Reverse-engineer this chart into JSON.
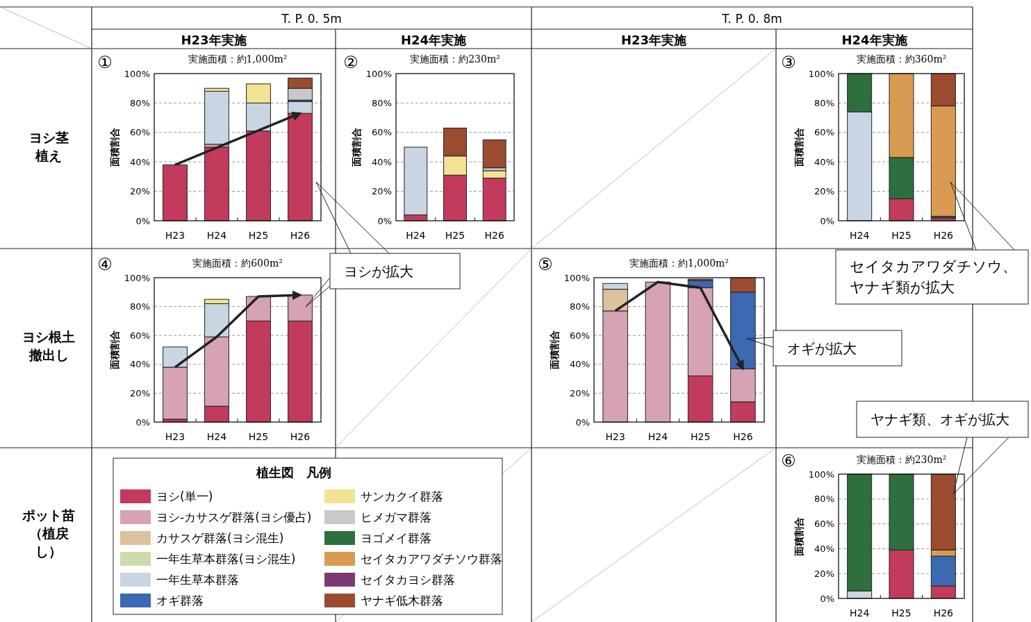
{
  "chart_data": [
    {
      "type": "bar",
      "stacked": true,
      "title": "実施面積：約1,000m²",
      "ylabel": "面積割合",
      "annotations": [
        "①",
        "ヨシが拡大"
      ],
      "categories": [
        "H23",
        "H24",
        "H25",
        "H26"
      ],
      "ylim": [
        0,
        100
      ],
      "yticks": [
        {
          "value": 0,
          "label": "0%"
        },
        {
          "value": 20,
          "label": "20%"
        },
        {
          "value": 40,
          "label": "40%"
        },
        {
          "value": 60,
          "label": "60%"
        },
        {
          "value": 80,
          "label": "80%"
        },
        {
          "value": 100,
          "label": "100%"
        }
      ],
      "grid": "y",
      "legend": "bottom",
      "legend_title": "植生図　凡例",
      "series": [
        {
          "name": "ヨシ(単一)",
          "color": "#c23b5c",
          "values": [
            38,
            50,
            61,
            73
          ]
        },
        {
          "name": "ヨシ-カサスゲ群落(ヨシ優占)",
          "color": "#d6a3b3",
          "values": [
            0,
            2,
            0,
            0
          ]
        },
        {
          "name": "カサスゲ群落(ヨシ混生)",
          "color": "#dcc29c",
          "values": [
            0,
            0,
            0,
            0
          ]
        },
        {
          "name": "一年生草本群落(ヨシ混生)",
          "color": "#cadcaa",
          "values": [
            0,
            0,
            0,
            0
          ]
        },
        {
          "name": "一年生草本群落",
          "color": "#c9d5e2",
          "values": [
            0,
            36,
            19,
            8
          ]
        },
        {
          "name": "オギ群落",
          "color": "#3b69b2",
          "values": [
            0,
            0,
            0,
            1
          ]
        },
        {
          "name": "サンカクイ群落",
          "color": "#f2e394",
          "values": [
            0,
            2,
            13,
            0
          ]
        },
        {
          "name": "ヒメガマ群落",
          "color": "#c9c9c9",
          "values": [
            0,
            0,
            0,
            8
          ]
        },
        {
          "name": "ヨゴメイ群落",
          "color": "#2f6f3d",
          "values": [
            0,
            0,
            0,
            0
          ]
        },
        {
          "name": "セイタカアワダチソウ群落",
          "color": "#d99b52",
          "values": [
            0,
            0,
            0,
            0
          ]
        },
        {
          "name": "セイタカヨシ群落",
          "color": "#7b3b72",
          "values": [
            0,
            0,
            0,
            0
          ]
        },
        {
          "name": "ヤナギ低木群落",
          "color": "#9b4b2f",
          "values": [
            0,
            0,
            0,
            7
          ]
        }
      ]
    },
    {
      "type": "bar",
      "stacked": true,
      "title": "実施面積：約230m²",
      "ylabel": "面積割合",
      "annotations": [
        "②"
      ],
      "categories": [
        "H24",
        "H25",
        "H26"
      ],
      "ylim": [
        0,
        100
      ],
      "yticks": [
        {
          "value": 0,
          "label": "0%"
        },
        {
          "value": 20,
          "label": "20%"
        },
        {
          "value": 40,
          "label": "40%"
        },
        {
          "value": 60,
          "label": "60%"
        },
        {
          "value": 80,
          "label": "80%"
        },
        {
          "value": 100,
          "label": "100%"
        }
      ],
      "grid": "y",
      "series": [
        {
          "color": "#c23b5c",
          "values": [
            4,
            31,
            29
          ]
        },
        {
          "color": "#c9d5e2",
          "values": [
            46,
            0,
            0
          ]
        },
        {
          "color": "#f2e394",
          "values": [
            0,
            13,
            5
          ]
        },
        {
          "color": "#c9c9c9",
          "values": [
            0,
            0,
            2
          ]
        },
        {
          "color": "#9b4b2f",
          "values": [
            0,
            19,
            19
          ]
        }
      ]
    },
    {
      "type": "bar",
      "stacked": true,
      "title": "実施面積：約360m²",
      "ylabel": "面積割合",
      "annotations": [
        "③",
        "セイタカアワダチソウ、ヤナギ類が拡大"
      ],
      "categories": [
        "H24",
        "H25",
        "H26"
      ],
      "ylim": [
        0,
        100
      ],
      "yticks": [
        {
          "value": 0,
          "label": "0%"
        },
        {
          "value": 20,
          "label": "20%"
        },
        {
          "value": 40,
          "label": "40%"
        },
        {
          "value": 60,
          "label": "60%"
        },
        {
          "value": 80,
          "label": "80%"
        },
        {
          "value": 100,
          "label": "100%"
        }
      ],
      "grid": "y",
      "series": [
        {
          "color": "#c23b5c",
          "values": [
            0,
            15,
            2
          ]
        },
        {
          "color": "#c9d5e2",
          "values": [
            74,
            0,
            0
          ]
        },
        {
          "color": "#2f6f3d",
          "values": [
            26,
            28,
            1
          ]
        },
        {
          "color": "#d99b52",
          "values": [
            0,
            57,
            75
          ]
        },
        {
          "color": "#9b4b2f",
          "values": [
            0,
            0,
            22
          ]
        }
      ]
    },
    {
      "type": "bar",
      "stacked": true,
      "title": "実施面積：約600m²",
      "ylabel": "面積割合",
      "annotations": [
        "④"
      ],
      "categories": [
        "H23",
        "H24",
        "H25",
        "H26"
      ],
      "ylim": [
        0,
        100
      ],
      "yticks": [
        {
          "value": 0,
          "label": "0%"
        },
        {
          "value": 20,
          "label": "20%"
        },
        {
          "value": 40,
          "label": "40%"
        },
        {
          "value": 60,
          "label": "60%"
        },
        {
          "value": 80,
          "label": "80%"
        },
        {
          "value": 100,
          "label": "100%"
        }
      ],
      "grid": "y",
      "series": [
        {
          "color": "#c23b5c",
          "values": [
            2,
            11,
            70,
            70
          ]
        },
        {
          "color": "#d6a3b3",
          "values": [
            36,
            48,
            17,
            18
          ]
        },
        {
          "color": "#c9d5e2",
          "values": [
            14,
            23,
            0,
            0
          ]
        },
        {
          "color": "#f2e394",
          "values": [
            0,
            3,
            0,
            0
          ]
        }
      ]
    },
    {
      "type": "bar",
      "stacked": true,
      "title": "実施面積：約1,000m²",
      "ylabel": "面積割合",
      "annotations": [
        "⑤",
        "オギが拡大"
      ],
      "categories": [
        "H23",
        "H24",
        "H25",
        "H26"
      ],
      "ylim": [
        0,
        100
      ],
      "yticks": [
        {
          "value": 0,
          "label": "0%"
        },
        {
          "value": 20,
          "label": "20%"
        },
        {
          "value": 40,
          "label": "40%"
        },
        {
          "value": 60,
          "label": "60%"
        },
        {
          "value": 80,
          "label": "80%"
        },
        {
          "value": 100,
          "label": "100%"
        }
      ],
      "grid": "y",
      "series": [
        {
          "color": "#c23b5c",
          "values": [
            0,
            0,
            32,
            14
          ]
        },
        {
          "color": "#d6a3b3",
          "values": [
            77,
            97,
            61,
            23
          ]
        },
        {
          "color": "#dcc29c",
          "values": [
            15,
            0,
            0,
            0
          ]
        },
        {
          "color": "#c9d5e2",
          "values": [
            4,
            0,
            0,
            0
          ]
        },
        {
          "color": "#3b69b2",
          "values": [
            0,
            0,
            5,
            53
          ]
        },
        {
          "color": "#9b4b2f",
          "values": [
            0,
            0,
            1,
            10
          ]
        }
      ]
    },
    {
      "type": "bar",
      "stacked": true,
      "title": "実施面積：約230m²",
      "ylabel": "面積割合",
      "annotations": [
        "⑥",
        "ヤナギ類、オギが拡大"
      ],
      "categories": [
        "H24",
        "H25",
        "H26"
      ],
      "ylim": [
        0,
        100
      ],
      "yticks": [
        {
          "value": 0,
          "label": "0%"
        },
        {
          "value": 20,
          "label": "20%"
        },
        {
          "value": 40,
          "label": "40%"
        },
        {
          "value": 60,
          "label": "60%"
        },
        {
          "value": 80,
          "label": "80%"
        },
        {
          "value": 100,
          "label": "100%"
        }
      ],
      "grid": "y",
      "series": [
        {
          "color": "#c23b5c",
          "values": [
            0,
            39,
            10
          ]
        },
        {
          "color": "#c9d5e2",
          "values": [
            6,
            0,
            0
          ]
        },
        {
          "color": "#3b69b2",
          "values": [
            0,
            0,
            24
          ]
        },
        {
          "color": "#2f6f3d",
          "values": [
            94,
            61,
            0
          ]
        },
        {
          "color": "#d99b52",
          "values": [
            0,
            0,
            5
          ]
        },
        {
          "color": "#9b4b2f",
          "values": [
            0,
            0,
            61
          ]
        }
      ]
    },
    {
      "type": "other",
      "annotations": [
        "T. P. 0. 5m",
        "T. P. 0. 8m",
        "H23年実施",
        "H24年実施",
        "H23年実施",
        "H24年実施",
        "ヨシ茎植え",
        "ヨシ根土撤出し",
        "ポット苗（植戻し）"
      ]
    }
  ]
}
